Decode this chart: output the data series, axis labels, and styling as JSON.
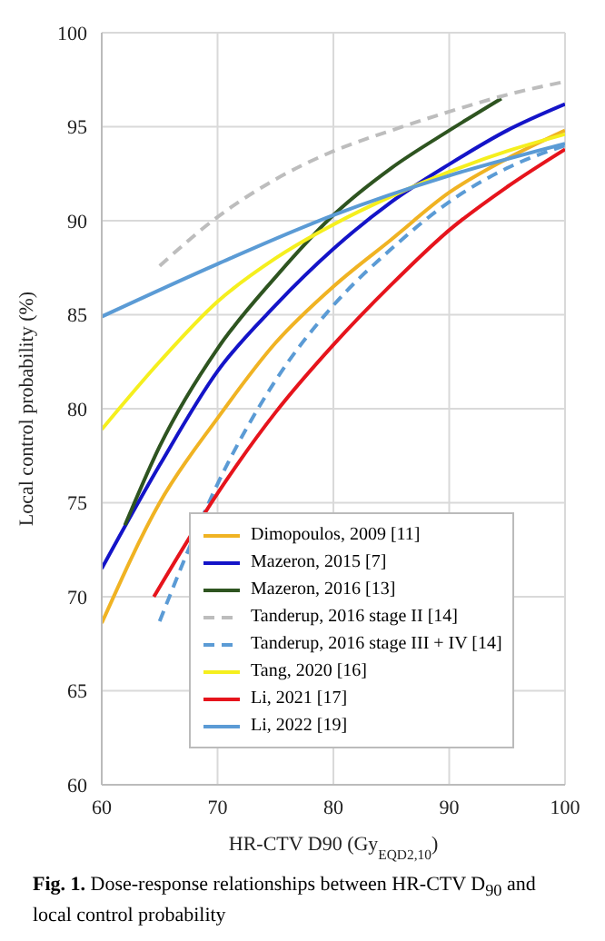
{
  "chart_data": {
    "type": "line",
    "title": "Fig. 1. Dose-response relationships between HR-CTV D$_{90}$ and local control probability",
    "xlabel": "HR-CTV D90 (Gy$_{EQD2,10}$)",
    "ylabel": "Local control probability (%)",
    "xlim": [
      60,
      100
    ],
    "xticks": [
      60,
      70,
      80,
      90,
      100
    ],
    "ylim": [
      60,
      100
    ],
    "yticks": [
      60,
      65,
      70,
      75,
      80,
      85,
      90,
      95,
      100
    ],
    "grid": true,
    "legend": "bottom right",
    "marker": "none",
    "series": [
      {
        "name": "Dimopoulos, 2009 [11]",
        "color": "#f0b323",
        "line_style": "solid",
        "x": [
          60,
          65,
          70,
          75,
          80,
          85,
          90,
          95,
          100
        ],
        "values": [
          68.6,
          75,
          79.5,
          83.5,
          86.5,
          89,
          91.5,
          93.3,
          94.8
        ]
      },
      {
        "name": "Mazeron, 2015 [7]",
        "color": "#1414c8",
        "line_style": "solid",
        "x": [
          60,
          65,
          70,
          75,
          80,
          85,
          90,
          95,
          100
        ],
        "values": [
          71.5,
          77,
          82,
          85.5,
          88.5,
          91,
          93,
          94.8,
          96.2
        ]
      },
      {
        "name": "Mazeron, 2016 [13]",
        "color": "#2e5420",
        "line_style": "solid",
        "x": [
          62,
          65,
          70,
          75,
          80,
          85,
          90,
          94.5
        ],
        "values": [
          73.8,
          78,
          83.2,
          87,
          90.3,
          92.8,
          94.8,
          96.5
        ]
      },
      {
        "name": "Tanderup, 2016 stage II [14]",
        "color": "#bdbdbd",
        "line_style": "dashed",
        "x": [
          65,
          70,
          75,
          80,
          85,
          90,
          95,
          100
        ],
        "values": [
          87.6,
          90.2,
          92.2,
          93.7,
          94.8,
          95.8,
          96.7,
          97.4
        ]
      },
      {
        "name": "Tanderup, 2016 stage III + IV [14]",
        "color": "#5b9bd5",
        "line_style": "dashed",
        "x": [
          65,
          70,
          75,
          80,
          85,
          90,
          95,
          100
        ],
        "values": [
          68.7,
          76,
          81.5,
          85.5,
          88.5,
          91,
          92.8,
          94
        ]
      },
      {
        "name": "Tang, 2020 [16]",
        "color": "#f5ef1e",
        "line_style": "solid",
        "x": [
          60,
          65,
          70,
          75,
          80,
          85,
          90,
          95,
          100
        ],
        "values": [
          78.9,
          82.5,
          85.7,
          88,
          89.8,
          91.3,
          92.6,
          93.7,
          94.6
        ]
      },
      {
        "name": "Li, 2021 [17]",
        "color": "#e6141c",
        "line_style": "solid",
        "x": [
          64.5,
          70,
          75,
          80,
          85,
          90,
          95,
          100
        ],
        "values": [
          70,
          75.5,
          79.8,
          83.4,
          86.6,
          89.5,
          91.8,
          93.8
        ]
      },
      {
        "name": "Li, 2022 [19]",
        "color": "#5b9bd5",
        "line_style": "solid",
        "x": [
          60,
          70,
          80,
          90,
          100
        ],
        "values": [
          84.9,
          87.7,
          90.3,
          92.4,
          94.1
        ]
      }
    ]
  }
}
